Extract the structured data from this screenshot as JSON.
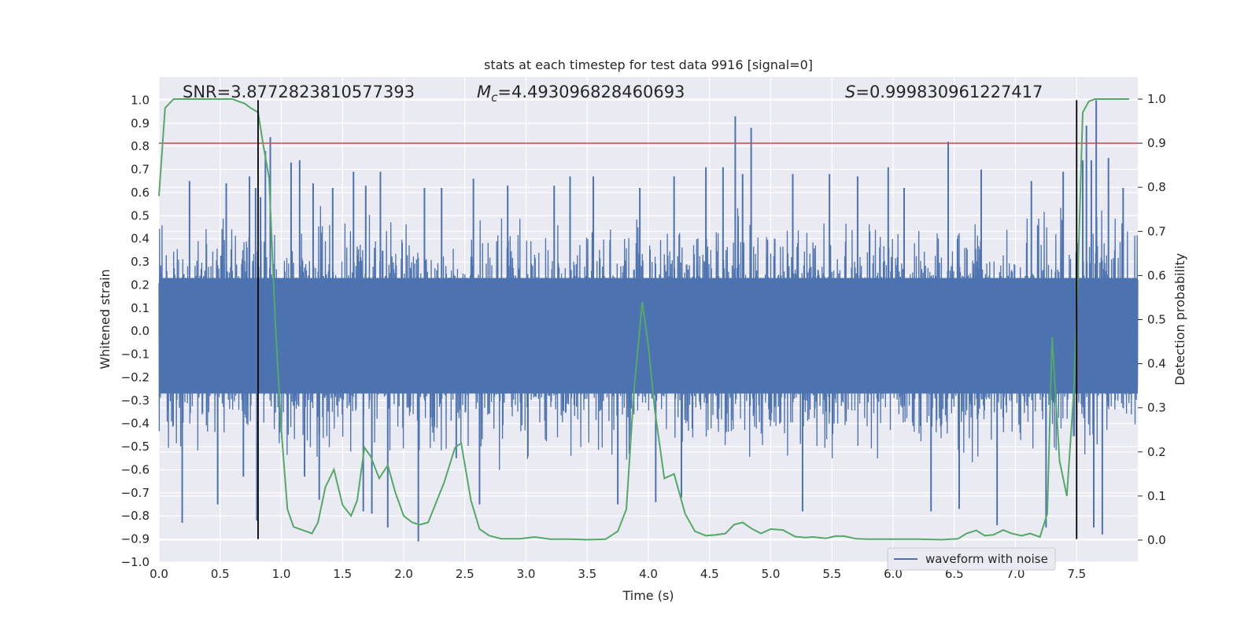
{
  "chart_data": {
    "type": "line",
    "title": "stats at each timestep for test data 9916 [signal=0]",
    "xlabel": "Time (s)",
    "ylabel_left": "Whitened strain",
    "ylabel_right": "Detection probability",
    "xlim": [
      0.0,
      8.0
    ],
    "ylim_left": [
      -1.0,
      1.1
    ],
    "ylim_right": [
      -0.05,
      1.05
    ],
    "x_ticks": [
      0.0,
      0.5,
      1.0,
      1.5,
      2.0,
      2.5,
      3.0,
      3.5,
      4.0,
      4.5,
      5.0,
      5.5,
      6.0,
      6.5,
      7.0,
      7.5
    ],
    "x_tick_labels": [
      "0.0",
      "0.5",
      "1.0",
      "1.5",
      "2.0",
      "2.5",
      "3.0",
      "3.5",
      "4.0",
      "4.5",
      "5.0",
      "5.5",
      "6.0",
      "6.5",
      "7.0",
      "7.5"
    ],
    "y_left_ticks": [
      1.0,
      0.9,
      0.8,
      0.7,
      0.6,
      0.5,
      0.4,
      0.3,
      0.2,
      0.1,
      0.0,
      -0.1,
      -0.2,
      -0.3,
      -0.4,
      -0.5,
      -0.6,
      -0.7,
      -0.8,
      -0.9,
      -1.0
    ],
    "y_left_tick_labels": [
      "1.0",
      "0.9",
      "0.8",
      "0.7",
      "0.6",
      "0.5",
      "0.4",
      "0.3",
      "0.2",
      "0.1",
      "0.0",
      "−0.1",
      "−0.2",
      "−0.3",
      "−0.4",
      "−0.5",
      "−0.6",
      "−0.7",
      "−0.8",
      "−0.9",
      "−1.0"
    ],
    "y_right_ticks": [
      1.0,
      0.9,
      0.8,
      0.7,
      0.6,
      0.5,
      0.4,
      0.3,
      0.2,
      0.1,
      0.0
    ],
    "y_right_tick_labels": [
      "1.0",
      "0.9",
      "0.8",
      "0.7",
      "0.6",
      "0.5",
      "0.4",
      "0.3",
      "0.2",
      "0.1",
      "0.0"
    ],
    "grid": true,
    "legend": {
      "placement": "lower-right",
      "entries": [
        "waveform with noise"
      ]
    },
    "annotations": {
      "snr": "SNR=3.8772823810577393",
      "mc_symbol": "M",
      "mc_subscript": "c",
      "mc_value": "=4.493096828460693",
      "s_symbol": "S",
      "s_value": "=0.999830961227417"
    },
    "threshold": {
      "axis": "right",
      "value": 0.9,
      "color": "#c44e52"
    },
    "vertical_markers": [
      0.81,
      7.5
    ],
    "series": [
      {
        "name": "waveform with noise",
        "axis": "left",
        "color": "#4c72b0",
        "description_stats": {
          "dense_band": [
            -0.27,
            0.23
          ],
          "t_start": 0.0,
          "t_end": 8.0
        },
        "peaks": [
          [
            0.19,
            -0.83
          ],
          [
            0.25,
            0.65
          ],
          [
            0.48,
            -0.75
          ],
          [
            0.55,
            0.64
          ],
          [
            0.69,
            -0.63
          ],
          [
            0.74,
            0.67
          ],
          [
            0.79,
            0.62
          ],
          [
            0.8,
            -0.82
          ],
          [
            0.83,
            0.58
          ],
          [
            0.87,
            0.78
          ],
          [
            0.91,
            0.84
          ],
          [
            1.08,
            0.73
          ],
          [
            1.15,
            0.74
          ],
          [
            1.19,
            -0.63
          ],
          [
            1.26,
            0.64
          ],
          [
            1.31,
            -0.73
          ],
          [
            1.42,
            0.62
          ],
          [
            1.59,
            0.69
          ],
          [
            1.67,
            -0.78
          ],
          [
            1.69,
            0.63
          ],
          [
            1.74,
            -0.79
          ],
          [
            1.81,
            0.69
          ],
          [
            1.87,
            -0.85
          ],
          [
            2.12,
            -0.91
          ],
          [
            2.17,
            0.62
          ],
          [
            2.31,
            0.62
          ],
          [
            2.43,
            -0.55
          ],
          [
            2.57,
            0.66
          ],
          [
            2.62,
            -0.75
          ],
          [
            2.85,
            0.63
          ],
          [
            3.23,
            0.63
          ],
          [
            3.36,
            0.67
          ],
          [
            3.55,
            0.67
          ],
          [
            3.75,
            -0.75
          ],
          [
            3.93,
            0.62
          ],
          [
            4.06,
            -0.74
          ],
          [
            4.21,
            0.67
          ],
          [
            4.27,
            -0.72
          ],
          [
            4.47,
            0.71
          ],
          [
            4.61,
            0.71
          ],
          [
            4.71,
            0.93
          ],
          [
            4.77,
            0.68
          ],
          [
            4.84,
            0.88
          ],
          [
            5.18,
            0.68
          ],
          [
            5.26,
            -0.78
          ],
          [
            5.48,
            0.68
          ],
          [
            5.71,
            0.67
          ],
          [
            5.96,
            0.71
          ],
          [
            6.09,
            0.62
          ],
          [
            6.31,
            -0.78
          ],
          [
            6.45,
            0.82
          ],
          [
            6.54,
            -0.77
          ],
          [
            6.72,
            0.7
          ],
          [
            6.85,
            -0.84
          ],
          [
            7.13,
            0.65
          ],
          [
            7.25,
            -0.85
          ],
          [
            7.39,
            0.69
          ],
          [
            7.55,
            0.74
          ],
          [
            7.58,
            0.89
          ],
          [
            7.62,
            0.74
          ],
          [
            7.64,
            -0.85
          ],
          [
            7.66,
            1.0
          ],
          [
            7.71,
            -0.88
          ],
          [
            7.76,
            0.75
          ],
          [
            7.88,
            0.62
          ]
        ]
      },
      {
        "axis": "right",
        "color": "#55a868",
        "points": [
          [
            0.0,
            0.78
          ],
          [
            0.05,
            0.98
          ],
          [
            0.12,
            1.0
          ],
          [
            0.2,
            1.0
          ],
          [
            0.3,
            1.0
          ],
          [
            0.4,
            1.0
          ],
          [
            0.5,
            1.0
          ],
          [
            0.6,
            1.0
          ],
          [
            0.65,
            0.995
          ],
          [
            0.7,
            0.99
          ],
          [
            0.75,
            0.98
          ],
          [
            0.81,
            0.97
          ],
          [
            0.85,
            0.9
          ],
          [
            0.9,
            0.82
          ],
          [
            0.95,
            0.5
          ],
          [
            1.0,
            0.25
          ],
          [
            1.05,
            0.07
          ],
          [
            1.1,
            0.03
          ],
          [
            1.2,
            0.02
          ],
          [
            1.25,
            0.015
          ],
          [
            1.3,
            0.04
          ],
          [
            1.36,
            0.12
          ],
          [
            1.43,
            0.16
          ],
          [
            1.5,
            0.08
          ],
          [
            1.57,
            0.055
          ],
          [
            1.62,
            0.09
          ],
          [
            1.68,
            0.21
          ],
          [
            1.73,
            0.19
          ],
          [
            1.8,
            0.14
          ],
          [
            1.87,
            0.17
          ],
          [
            1.93,
            0.11
          ],
          [
            2.0,
            0.055
          ],
          [
            2.07,
            0.04
          ],
          [
            2.13,
            0.035
          ],
          [
            2.2,
            0.04
          ],
          [
            2.33,
            0.13
          ],
          [
            2.42,
            0.21
          ],
          [
            2.47,
            0.22
          ],
          [
            2.55,
            0.09
          ],
          [
            2.62,
            0.025
          ],
          [
            2.7,
            0.01
          ],
          [
            2.8,
            0.003
          ],
          [
            2.95,
            0.003
          ],
          [
            3.07,
            0.007
          ],
          [
            3.2,
            0.002
          ],
          [
            3.35,
            0.002
          ],
          [
            3.5,
            0.001
          ],
          [
            3.65,
            0.002
          ],
          [
            3.75,
            0.02
          ],
          [
            3.82,
            0.07
          ],
          [
            3.88,
            0.33
          ],
          [
            3.95,
            0.54
          ],
          [
            4.0,
            0.44
          ],
          [
            4.05,
            0.3
          ],
          [
            4.13,
            0.14
          ],
          [
            4.21,
            0.15
          ],
          [
            4.3,
            0.06
          ],
          [
            4.38,
            0.02
          ],
          [
            4.47,
            0.01
          ],
          [
            4.55,
            0.012
          ],
          [
            4.63,
            0.015
          ],
          [
            4.7,
            0.035
          ],
          [
            4.77,
            0.04
          ],
          [
            4.85,
            0.025
          ],
          [
            4.92,
            0.015
          ],
          [
            5.0,
            0.025
          ],
          [
            5.1,
            0.023
          ],
          [
            5.2,
            0.008
          ],
          [
            5.28,
            0.006
          ],
          [
            5.35,
            0.007
          ],
          [
            5.45,
            0.004
          ],
          [
            5.53,
            0.009
          ],
          [
            5.6,
            0.009
          ],
          [
            5.7,
            0.003
          ],
          [
            5.8,
            0.002
          ],
          [
            6.0,
            0.002
          ],
          [
            6.2,
            0.002
          ],
          [
            6.4,
            0.001
          ],
          [
            6.53,
            0.003
          ],
          [
            6.6,
            0.015
          ],
          [
            6.68,
            0.022
          ],
          [
            6.75,
            0.01
          ],
          [
            6.82,
            0.012
          ],
          [
            6.9,
            0.023
          ],
          [
            6.97,
            0.015
          ],
          [
            7.05,
            0.01
          ],
          [
            7.12,
            0.015
          ],
          [
            7.2,
            0.007
          ],
          [
            7.26,
            0.06
          ],
          [
            7.3,
            0.46
          ],
          [
            7.36,
            0.18
          ],
          [
            7.42,
            0.1
          ],
          [
            7.48,
            0.35
          ],
          [
            7.51,
            0.6
          ],
          [
            7.55,
            0.97
          ],
          [
            7.6,
            0.995
          ],
          [
            7.65,
            1.0
          ],
          [
            7.75,
            1.0
          ],
          [
            7.85,
            1.0
          ],
          [
            7.93,
            1.0
          ]
        ]
      }
    ]
  }
}
